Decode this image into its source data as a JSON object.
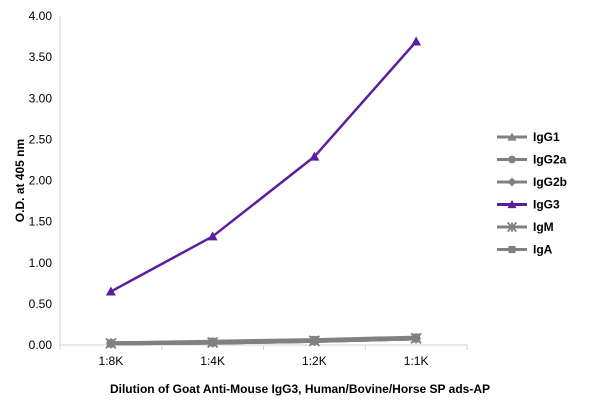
{
  "chart_data": {
    "type": "line",
    "categories": [
      "1:8K",
      "1:4K",
      "1:2K",
      "1:1K"
    ],
    "xlabel": "Dilution of Goat Anti-Mouse IgG3, Human/Bovine/Horse SP ads-AP",
    "ylabel": "O.D. at 405 nm",
    "ylim": [
      0,
      4
    ],
    "yticks": [
      "0.00",
      "0.50",
      "1.00",
      "1.50",
      "2.00",
      "2.50",
      "3.00",
      "3.50",
      "4.00"
    ],
    "grid": false,
    "legend_position": "right",
    "series": [
      {
        "name": "IgG1",
        "values": [
          0.02,
          0.03,
          0.05,
          0.08
        ],
        "color": "#808080",
        "marker": "triangle"
      },
      {
        "name": "IgG2a",
        "values": [
          0.02,
          0.03,
          0.05,
          0.08
        ],
        "color": "#808080",
        "marker": "circle"
      },
      {
        "name": "IgG2b",
        "values": [
          0.02,
          0.03,
          0.05,
          0.08
        ],
        "color": "#808080",
        "marker": "diamond"
      },
      {
        "name": "IgG3",
        "values": [
          0.65,
          1.32,
          2.29,
          3.69
        ],
        "color": "#5b1e9f",
        "marker": "triangle"
      },
      {
        "name": "IgM",
        "values": [
          0.02,
          0.03,
          0.05,
          0.08
        ],
        "color": "#808080",
        "marker": "x"
      },
      {
        "name": "IgA",
        "values": [
          0.02,
          0.04,
          0.06,
          0.09
        ],
        "color": "#808080",
        "marker": "square"
      }
    ]
  }
}
